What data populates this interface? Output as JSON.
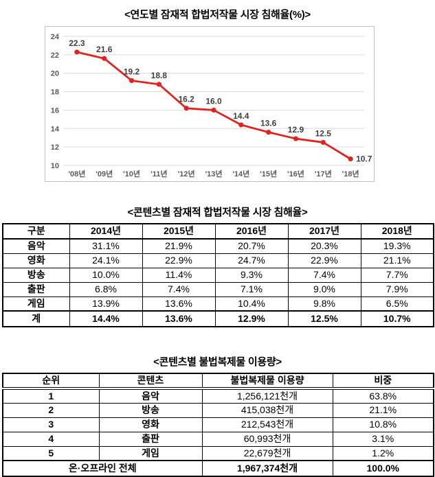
{
  "titles": {
    "chart": "<연도별 잠재적 합법저작물 시장 침해율(%)>",
    "infringement_table": "<콘텐츠별 잠재적 합법저작물 시장 침해율>",
    "usage_table": "<콘텐츠별 불법복제물 이용량>"
  },
  "chart_data": {
    "type": "line",
    "title": "연도별 잠재적 합법저작물 시장 침해율(%)",
    "categories": [
      "'08년",
      "'09년",
      "'10년",
      "'11년",
      "'12년",
      "'13년",
      "'14년",
      "'15년",
      "'16년",
      "'17년",
      "'18년"
    ],
    "values": [
      22.3,
      21.6,
      19.2,
      18.8,
      16.2,
      16.0,
      14.4,
      13.6,
      12.9,
      12.5,
      10.7
    ],
    "labels": [
      "22.3",
      "21.6",
      "19.2",
      "18.8",
      "16.2",
      "16.0",
      "14.4",
      "13.6",
      "12.9",
      "12.5",
      "10.7"
    ],
    "ylim": [
      10,
      24
    ],
    "ytick_step": 2,
    "grid": true,
    "legend": "none",
    "line_color": "#e0231f",
    "marker": "circle",
    "label_color": "#3f3f3f",
    "axis_color": "#595959",
    "grid_color": "#d9d9d9"
  },
  "infringement_table": {
    "headers": [
      "구분",
      "2014년",
      "2015년",
      "2016년",
      "2017년",
      "2018년"
    ],
    "rows": [
      [
        "음악",
        "31.1%",
        "21.9%",
        "20.7%",
        "20.3%",
        "19.3%"
      ],
      [
        "영화",
        "24.1%",
        "22.9%",
        "24.7%",
        "22.9%",
        "21.1%"
      ],
      [
        "방송",
        "10.0%",
        "11.4%",
        "9.3%",
        "7.4%",
        "7.7%"
      ],
      [
        "출판",
        "6.8%",
        "7.4%",
        "7.1%",
        "9.0%",
        "7.9%"
      ],
      [
        "게임",
        "13.9%",
        "13.6%",
        "10.4%",
        "9.8%",
        "6.5%"
      ]
    ],
    "total_row": [
      "계",
      "14.4%",
      "13.6%",
      "12.9%",
      "12.5%",
      "10.7%"
    ]
  },
  "usage_table": {
    "headers": [
      "순위",
      "콘텐츠",
      "불법복제물 이용량",
      "비중"
    ],
    "rows": [
      [
        "1",
        "음악",
        "1,256,121천개",
        "63.8%"
      ],
      [
        "2",
        "방송",
        "415,038천개",
        "21.1%"
      ],
      [
        "3",
        "영화",
        "212,543천개",
        "10.8%"
      ],
      [
        "4",
        "출판",
        "60,993천개",
        "3.1%"
      ],
      [
        "5",
        "게임",
        "22,679천개",
        "1.2%"
      ]
    ],
    "total_row": {
      "label": "온·오프라인 전체",
      "usage": "1,967,374천개",
      "share": "100.0%"
    }
  }
}
